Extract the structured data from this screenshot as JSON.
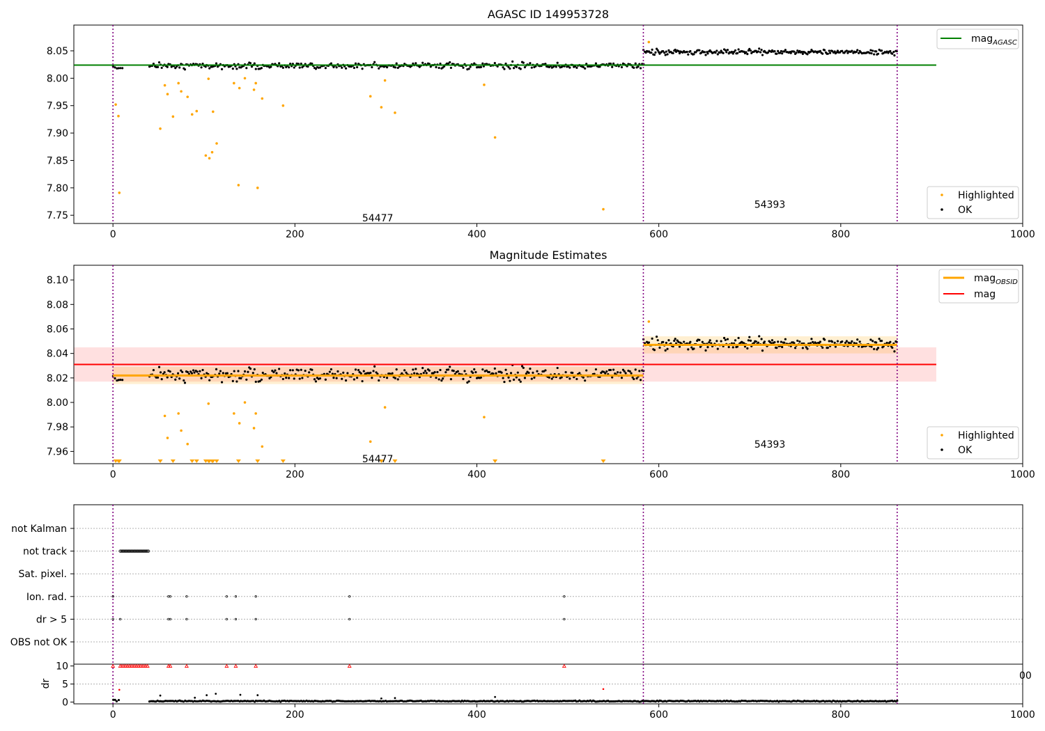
{
  "chart_data": [
    {
      "type": "scatter",
      "title": "AGASC ID 149953728",
      "xlabel": "",
      "ylabel": "",
      "xlim": [
        -43,
        1000
      ],
      "ylim": [
        7.735,
        8.097
      ],
      "xticks": [
        0,
        200,
        400,
        600,
        800,
        1000
      ],
      "yticks": [
        7.75,
        7.8,
        7.85,
        7.9,
        7.95,
        8.0,
        8.05
      ],
      "ytick_labels": [
        "7.75",
        "7.80",
        "7.85",
        "7.90",
        "7.95",
        "8.00",
        "8.05"
      ],
      "vlines": [
        0,
        583,
        862
      ],
      "annotations": [
        {
          "text": "54477",
          "x": 291,
          "y": 7.745
        },
        {
          "text": "54393",
          "x": 722,
          "y": 7.77
        }
      ],
      "mag_agasc": {
        "label": "mag",
        "sub": "AGASC",
        "y": 8.024,
        "x_range": [
          0,
          905
        ],
        "color": "#008000"
      },
      "highlighted": {
        "label": "Highlighted",
        "color": "#ffa500",
        "points": [
          [
            3,
            7.952
          ],
          [
            6,
            7.931
          ],
          [
            7,
            7.791
          ],
          [
            52,
            7.908
          ],
          [
            57,
            7.987
          ],
          [
            60,
            7.971
          ],
          [
            66,
            7.93
          ],
          [
            72,
            7.991
          ],
          [
            75,
            7.976
          ],
          [
            82,
            7.966
          ],
          [
            87,
            7.934
          ],
          [
            92,
            7.94
          ],
          [
            102,
            7.859
          ],
          [
            106,
            7.854
          ],
          [
            105,
            7.999
          ],
          [
            109,
            7.865
          ],
          [
            110,
            7.939
          ],
          [
            114,
            7.881
          ],
          [
            133,
            7.991
          ],
          [
            138,
            7.805
          ],
          [
            139,
            7.982
          ],
          [
            145,
            8.0
          ],
          [
            155,
            7.979
          ],
          [
            157,
            7.991
          ],
          [
            159,
            7.8
          ],
          [
            164,
            7.963
          ],
          [
            187,
            7.95
          ],
          [
            283,
            7.967
          ],
          [
            295,
            7.947
          ],
          [
            299,
            7.996
          ],
          [
            310,
            7.937
          ],
          [
            408,
            7.988
          ],
          [
            420,
            7.892
          ],
          [
            539,
            7.761
          ],
          [
            589,
            8.066
          ]
        ]
      },
      "ok": {
        "label": "OK",
        "color": "#000000",
        "segments": [
          {
            "x_range": [
              0,
              10
            ],
            "mean": 8.02,
            "spread": 0.006,
            "step": 2
          },
          {
            "x_range": [
              40,
              583
            ],
            "mean": 8.023,
            "spread": 0.008,
            "step": 1.5
          },
          {
            "x_range": [
              583,
              862
            ],
            "mean": 8.048,
            "spread": 0.007,
            "step": 1.2
          }
        ]
      },
      "legend_position": "top-right / bottom-right"
    },
    {
      "type": "scatter",
      "title": "Magnitude Estimates",
      "xlabel": "",
      "ylabel": "",
      "xlim": [
        -43,
        1000
      ],
      "ylim": [
        7.95,
        8.112
      ],
      "xticks": [
        0,
        200,
        400,
        600,
        800,
        1000
      ],
      "yticks": [
        7.96,
        7.98,
        8.0,
        8.02,
        8.04,
        8.06,
        8.08,
        8.1
      ],
      "ytick_labels": [
        "7.96",
        "7.98",
        "8.00",
        "8.02",
        "8.04",
        "8.06",
        "8.08",
        "8.10"
      ],
      "vlines": [
        0,
        583,
        862
      ],
      "annotations": [
        {
          "text": "54477",
          "x": 291,
          "y": 7.954
        },
        {
          "text": "54393",
          "x": 722,
          "y": 7.966
        }
      ],
      "mag_obsid": {
        "label": "mag",
        "sub": "OBSID",
        "color": "#ffa500",
        "segments": [
          {
            "x_range": [
              0,
              583
            ],
            "y": 8.022,
            "band": 0.007
          },
          {
            "x_range": [
              583,
              862
            ],
            "y": 8.047,
            "band": 0.007
          }
        ]
      },
      "mag": {
        "label": "mag",
        "color": "#ff0000",
        "y": 8.031,
        "band": [
          8.017,
          8.045
        ],
        "x_range": [
          0,
          905
        ]
      },
      "highlighted": {
        "label": "Highlighted",
        "color": "#ffa500",
        "points": [
          [
            57,
            7.989
          ],
          [
            60,
            7.971
          ],
          [
            72,
            7.991
          ],
          [
            75,
            7.977
          ],
          [
            82,
            7.966
          ],
          [
            105,
            7.999
          ],
          [
            133,
            7.991
          ],
          [
            139,
            7.983
          ],
          [
            145,
            8.0
          ],
          [
            155,
            7.979
          ],
          [
            157,
            7.991
          ],
          [
            164,
            7.964
          ],
          [
            283,
            7.968
          ],
          [
            299,
            7.996
          ],
          [
            408,
            7.988
          ],
          [
            589,
            8.066
          ]
        ],
        "below_axis_x": [
          3,
          6,
          7,
          52,
          66,
          87,
          92,
          102,
          105,
          106,
          109,
          110,
          114,
          138,
          159,
          187,
          295,
          310,
          420,
          539
        ]
      },
      "ok": {
        "label": "OK",
        "color": "#000000",
        "segments": [
          {
            "x_range": [
              0,
              10
            ],
            "mean": 8.02,
            "spread": 0.006,
            "step": 2
          },
          {
            "x_range": [
              40,
              583
            ],
            "mean": 8.023,
            "spread": 0.008,
            "step": 1.5
          },
          {
            "x_range": [
              583,
              862
            ],
            "mean": 8.048,
            "spread": 0.007,
            "step": 1.2
          }
        ]
      },
      "legend_position": "top-right / bottom-right"
    },
    {
      "type": "scatter",
      "title": "",
      "xlabel": "",
      "ylabel": "",
      "categories": [
        "not Kalman",
        "not track",
        "Sat. pixel.",
        "Ion. rad.",
        "dr > 5",
        "OBS not OK"
      ],
      "vlines": [
        0,
        583,
        862
      ],
      "flags": {
        "not track": {
          "x_range": [
            8,
            39
          ],
          "step": 1
        },
        "Ion. rad.": [
          0,
          61,
          63,
          81,
          125,
          135,
          157,
          260,
          496
        ],
        "dr > 5": [
          0,
          8,
          61,
          63,
          81,
          125,
          135,
          157,
          260,
          496
        ]
      }
    },
    {
      "type": "scatter",
      "title": "",
      "xlabel": "",
      "ylabel": "dr",
      "xlim": [
        -43,
        1000
      ],
      "ylim": [
        -0.5,
        10.5
      ],
      "xticks": [
        0,
        200,
        400,
        600,
        800,
        1000
      ],
      "yticks": [
        0,
        5,
        10
      ],
      "ytick_labels": [
        "0",
        "5",
        "10"
      ],
      "clipped_tick_label": "00",
      "vlines": [
        0,
        583,
        862
      ],
      "capped": {
        "color": "#ff0000",
        "y": 10,
        "x": [
          0,
          8,
          10,
          12,
          14,
          16,
          18,
          20,
          22,
          24,
          26,
          28,
          30,
          32,
          34,
          36,
          38,
          61,
          63,
          81,
          125,
          135,
          157,
          260,
          496
        ]
      },
      "outliers": [
        [
          7,
          3.4
        ],
        [
          539,
          3.6
        ]
      ],
      "ok": {
        "color": "#000000",
        "segments": [
          {
            "x_range": [
              0,
              6
            ],
            "mean": 0.5,
            "spread": 0.4,
            "step": 2
          },
          {
            "x_range": [
              40,
              862
            ],
            "mean": 0.25,
            "spread": 0.2,
            "step": 1.5
          }
        ]
      },
      "ok_extra": [
        [
          52,
          1.8
        ],
        [
          90,
          1.2
        ],
        [
          103,
          1.9
        ],
        [
          113,
          2.3
        ],
        [
          140,
          2.0
        ],
        [
          159,
          1.9
        ],
        [
          295,
          1.0
        ],
        [
          310,
          1.1
        ],
        [
          420,
          1.4
        ]
      ]
    }
  ],
  "legends": {
    "panel1_top": {
      "line_label": "mag",
      "line_sub": "AGASC"
    },
    "panel1_bottom": {
      "items": [
        "Highlighted",
        "OK"
      ]
    },
    "panel2_top": {
      "items": [
        {
          "label": "mag",
          "sub": "OBSID"
        },
        {
          "label": "mag",
          "sub": ""
        }
      ]
    },
    "panel2_bottom": {
      "items": [
        "Highlighted",
        "OK"
      ]
    }
  },
  "colors": {
    "vline": "#800080",
    "ok": "#000000",
    "highlight": "#ffa500",
    "agasc": "#008000",
    "mag": "#ff0000",
    "grid": "#b0b0b0"
  }
}
